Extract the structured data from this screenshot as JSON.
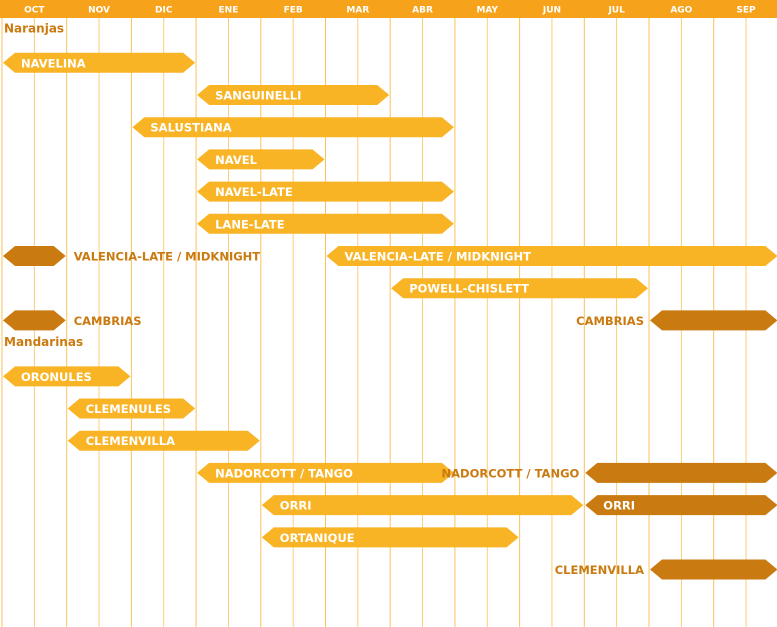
{
  "chart_data": {
    "type": "gantt",
    "months": [
      "OCT",
      "NOV",
      "DIC",
      "ENE",
      "FEB",
      "MAR",
      "ABR",
      "MAY",
      "JUN",
      "JUL",
      "AGO",
      "SEP"
    ],
    "colors": {
      "header_bg": "#F7A21B",
      "header_text": "#ffffff",
      "grid": "#F9C35A",
      "bar_main": "#F8B425",
      "bar_alt": "#C97A10",
      "label_text": "#C97A10",
      "bar_text": "#ffffff"
    },
    "groups": [
      {
        "title": "Naranjas",
        "rows": [
          {
            "label": "NAVELINA",
            "segments": [
              {
                "start": "OCT",
                "end": "DIC",
                "style": "main",
                "text": "NAVELINA"
              }
            ]
          },
          {
            "label": "SANGUINELLI",
            "segments": [
              {
                "start": "ENE",
                "end": "MAR",
                "style": "main",
                "text": "SANGUINELLI"
              }
            ]
          },
          {
            "label": "SALUSTIANA",
            "segments": [
              {
                "start": "DIC",
                "end": "ABR",
                "style": "main",
                "text": "SALUSTIANA"
              }
            ]
          },
          {
            "label": "NAVEL",
            "segments": [
              {
                "start": "ENE",
                "end": "FEB",
                "style": "main",
                "text": "NAVEL"
              }
            ]
          },
          {
            "label": "NAVEL-LATE",
            "segments": [
              {
                "start": "ENE",
                "end": "ABR",
                "style": "main",
                "text": "NAVEL-LATE"
              }
            ]
          },
          {
            "label": "LANE-LATE",
            "segments": [
              {
                "start": "ENE",
                "end": "ABR",
                "style": "main",
                "text": "LANE-LATE"
              }
            ]
          },
          {
            "label": "VALENCIA-LATE / MIDKNIGHT",
            "segments": [
              {
                "start": "OCT",
                "end": "OCT",
                "style": "alt",
                "text": "VALENCIA-LATE / MIDKNIGHT",
                "text_outside": "right"
              },
              {
                "start": "MAR",
                "end": "SEP",
                "style": "main",
                "text": "VALENCIA-LATE / MIDKNIGHT"
              }
            ]
          },
          {
            "label": "POWELL-CHISLETT",
            "segments": [
              {
                "start": "ABR",
                "end": "JUL",
                "style": "main",
                "text": "POWELL-CHISLETT"
              }
            ]
          },
          {
            "label": "CAMBRIAS",
            "segments": [
              {
                "start": "OCT",
                "end": "OCT",
                "style": "alt",
                "text": "CAMBRIAS",
                "text_outside": "right"
              },
              {
                "start": "AGO",
                "end": "SEP",
                "style": "alt",
                "text": "CAMBRIAS",
                "text_outside": "left"
              }
            ]
          }
        ]
      },
      {
        "title": "Mandarinas",
        "rows": [
          {
            "label": "ORONULES",
            "segments": [
              {
                "start": "OCT",
                "end": "NOV",
                "style": "main",
                "text": "ORONULES"
              }
            ]
          },
          {
            "label": "CLEMENULES",
            "segments": [
              {
                "start": "NOV",
                "end": "DIC",
                "style": "main",
                "text": "CLEMENULES"
              }
            ]
          },
          {
            "label": "CLEMENVILLA",
            "segments": [
              {
                "start": "NOV",
                "end": "ENE",
                "style": "main",
                "text": "CLEMENVILLA"
              }
            ]
          },
          {
            "label": "NADORCOTT / TANGO",
            "segments": [
              {
                "start": "ENE",
                "end": "ABR",
                "style": "main",
                "text": "NADORCOTT / TANGO"
              },
              {
                "start": "JUL",
                "end": "SEP",
                "style": "alt",
                "text": "NADORCOTT / TANGO",
                "text_outside": "left"
              }
            ]
          },
          {
            "label": "ORRI",
            "segments": [
              {
                "start": "FEB",
                "end": "JUN",
                "style": "main",
                "text": "ORRI"
              },
              {
                "start": "JUL",
                "end": "SEP",
                "style": "alt",
                "text": "ORRI"
              }
            ]
          },
          {
            "label": "ORTANIQUE",
            "segments": [
              {
                "start": "FEB",
                "end": "MAY",
                "style": "main",
                "text": "ORTANIQUE"
              }
            ]
          },
          {
            "label": "CLEMENVILLA",
            "segments": [
              {
                "start": "AGO",
                "end": "SEP",
                "style": "alt",
                "text": "CLEMENVILLA",
                "text_outside": "left"
              }
            ]
          }
        ]
      }
    ]
  }
}
